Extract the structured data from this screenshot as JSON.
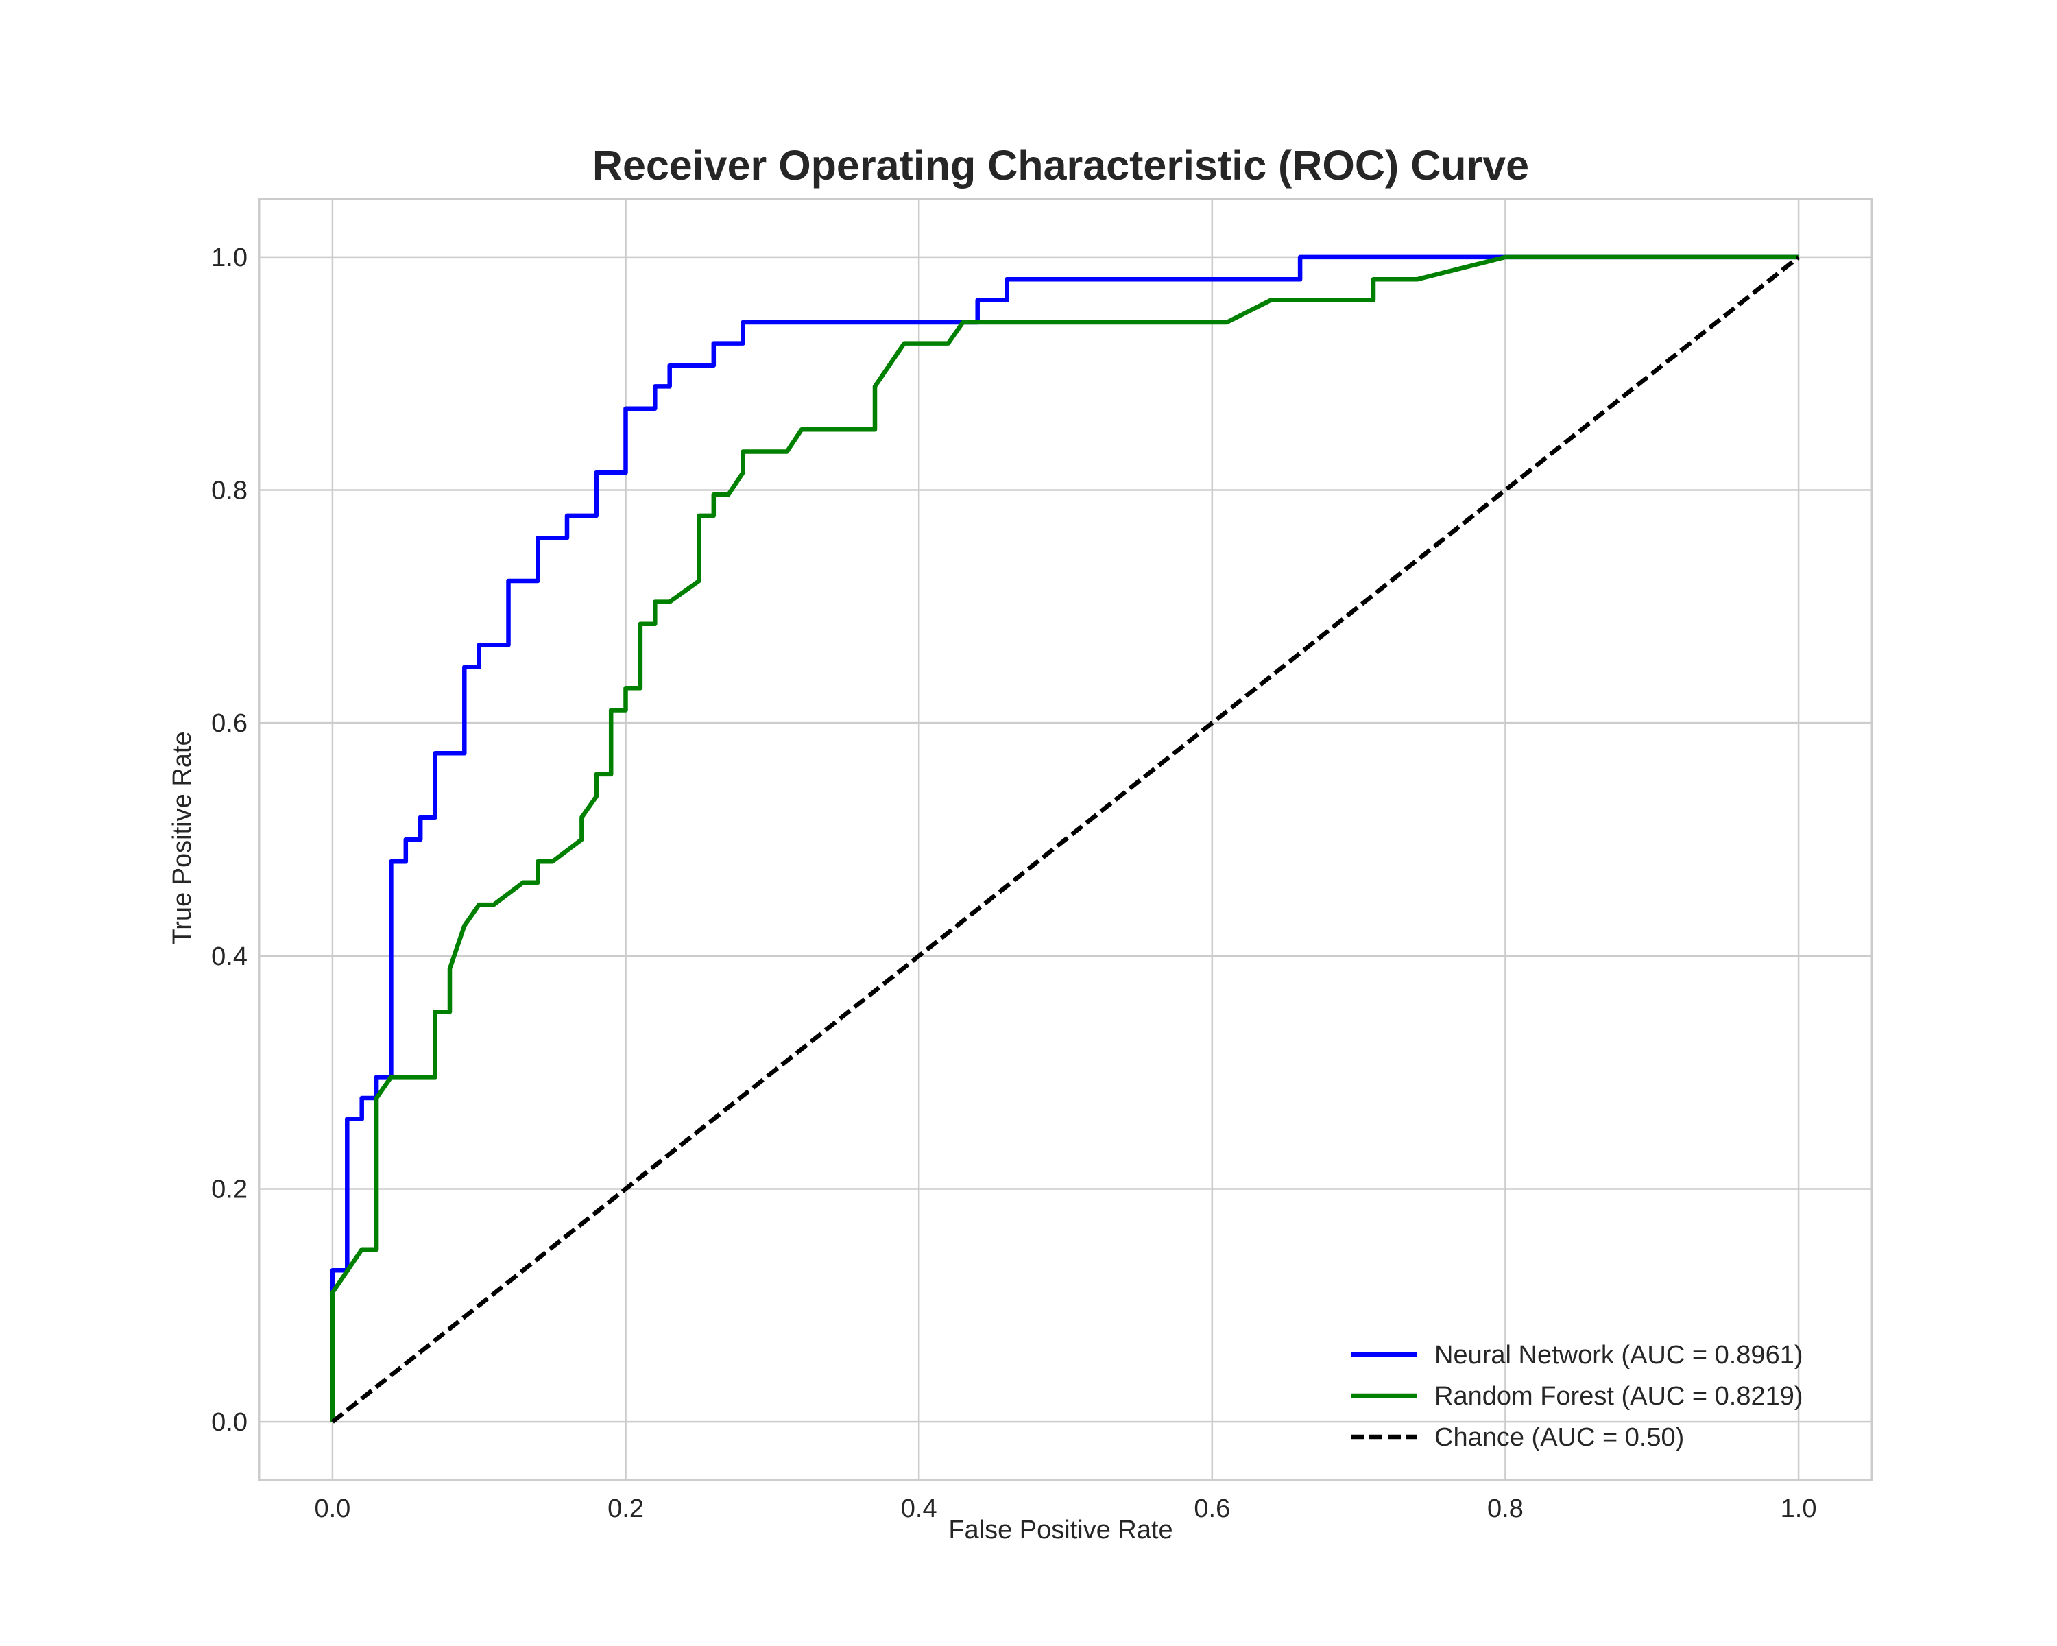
{
  "chart_data": {
    "type": "line",
    "title": "Receiver Operating Characteristic (ROC) Curve",
    "xlabel": "False Positive Rate",
    "ylabel": "True Positive Rate",
    "xlim": [
      -0.05,
      1.05
    ],
    "ylim": [
      -0.05,
      1.05
    ],
    "xticks": [
      0.0,
      0.2,
      0.4,
      0.6,
      0.8,
      1.0
    ],
    "yticks": [
      0.0,
      0.2,
      0.4,
      0.6,
      0.8,
      1.0
    ],
    "xtick_labels": [
      "0.0",
      "0.2",
      "0.4",
      "0.6",
      "0.8",
      "1.0"
    ],
    "ytick_labels": [
      "0.0",
      "0.2",
      "0.4",
      "0.6",
      "0.8",
      "1.0"
    ],
    "grid": true,
    "legend_position": "bottom-right",
    "series": [
      {
        "name": "Neural Network (AUC = 0.8961)",
        "color": "#0000ff",
        "line_style": "solid",
        "x": [
          0.0,
          0.0,
          0.01,
          0.01,
          0.02,
          0.02,
          0.03,
          0.03,
          0.04,
          0.04,
          0.05,
          0.05,
          0.06,
          0.06,
          0.07,
          0.07,
          0.09,
          0.09,
          0.1,
          0.1,
          0.12,
          0.12,
          0.14,
          0.14,
          0.16,
          0.16,
          0.18,
          0.18,
          0.2,
          0.2,
          0.22,
          0.22,
          0.23,
          0.23,
          0.26,
          0.26,
          0.28,
          0.28,
          0.44,
          0.44,
          0.46,
          0.46,
          0.66,
          0.66,
          1.0
        ],
        "y": [
          0.0,
          0.13,
          0.13,
          0.26,
          0.26,
          0.278,
          0.278,
          0.296,
          0.296,
          0.481,
          0.481,
          0.5,
          0.5,
          0.519,
          0.519,
          0.574,
          0.574,
          0.648,
          0.648,
          0.667,
          0.667,
          0.722,
          0.722,
          0.759,
          0.759,
          0.778,
          0.778,
          0.815,
          0.815,
          0.87,
          0.87,
          0.889,
          0.889,
          0.907,
          0.907,
          0.926,
          0.926,
          0.944,
          0.944,
          0.963,
          0.963,
          0.981,
          0.981,
          1.0,
          1.0
        ]
      },
      {
        "name": "Random Forest (AUC = 0.8219)",
        "color": "#008000",
        "line_style": "solid",
        "x": [
          0.0,
          0.0,
          0.02,
          0.03,
          0.03,
          0.04,
          0.07,
          0.07,
          0.08,
          0.08,
          0.09,
          0.1,
          0.11,
          0.13,
          0.14,
          0.14,
          0.15,
          0.17,
          0.17,
          0.18,
          0.18,
          0.19,
          0.19,
          0.2,
          0.2,
          0.21,
          0.21,
          0.22,
          0.22,
          0.23,
          0.25,
          0.25,
          0.26,
          0.26,
          0.27,
          0.28,
          0.28,
          0.31,
          0.32,
          0.37,
          0.37,
          0.39,
          0.42,
          0.43,
          0.61,
          0.64,
          0.71,
          0.71,
          0.74,
          0.8,
          1.0
        ],
        "y": [
          0.0,
          0.111,
          0.148,
          0.148,
          0.278,
          0.296,
          0.296,
          0.352,
          0.352,
          0.389,
          0.426,
          0.444,
          0.444,
          0.463,
          0.463,
          0.481,
          0.481,
          0.5,
          0.519,
          0.537,
          0.556,
          0.556,
          0.611,
          0.611,
          0.63,
          0.63,
          0.685,
          0.685,
          0.704,
          0.704,
          0.722,
          0.778,
          0.778,
          0.796,
          0.796,
          0.815,
          0.833,
          0.833,
          0.852,
          0.852,
          0.889,
          0.926,
          0.926,
          0.944,
          0.944,
          0.963,
          0.963,
          0.981,
          0.981,
          1.0,
          1.0
        ]
      },
      {
        "name": "Chance (AUC = 0.50)",
        "color": "#000000",
        "line_style": "dashed",
        "x": [
          0.0,
          1.0
        ],
        "y": [
          0.0,
          1.0
        ]
      }
    ]
  }
}
